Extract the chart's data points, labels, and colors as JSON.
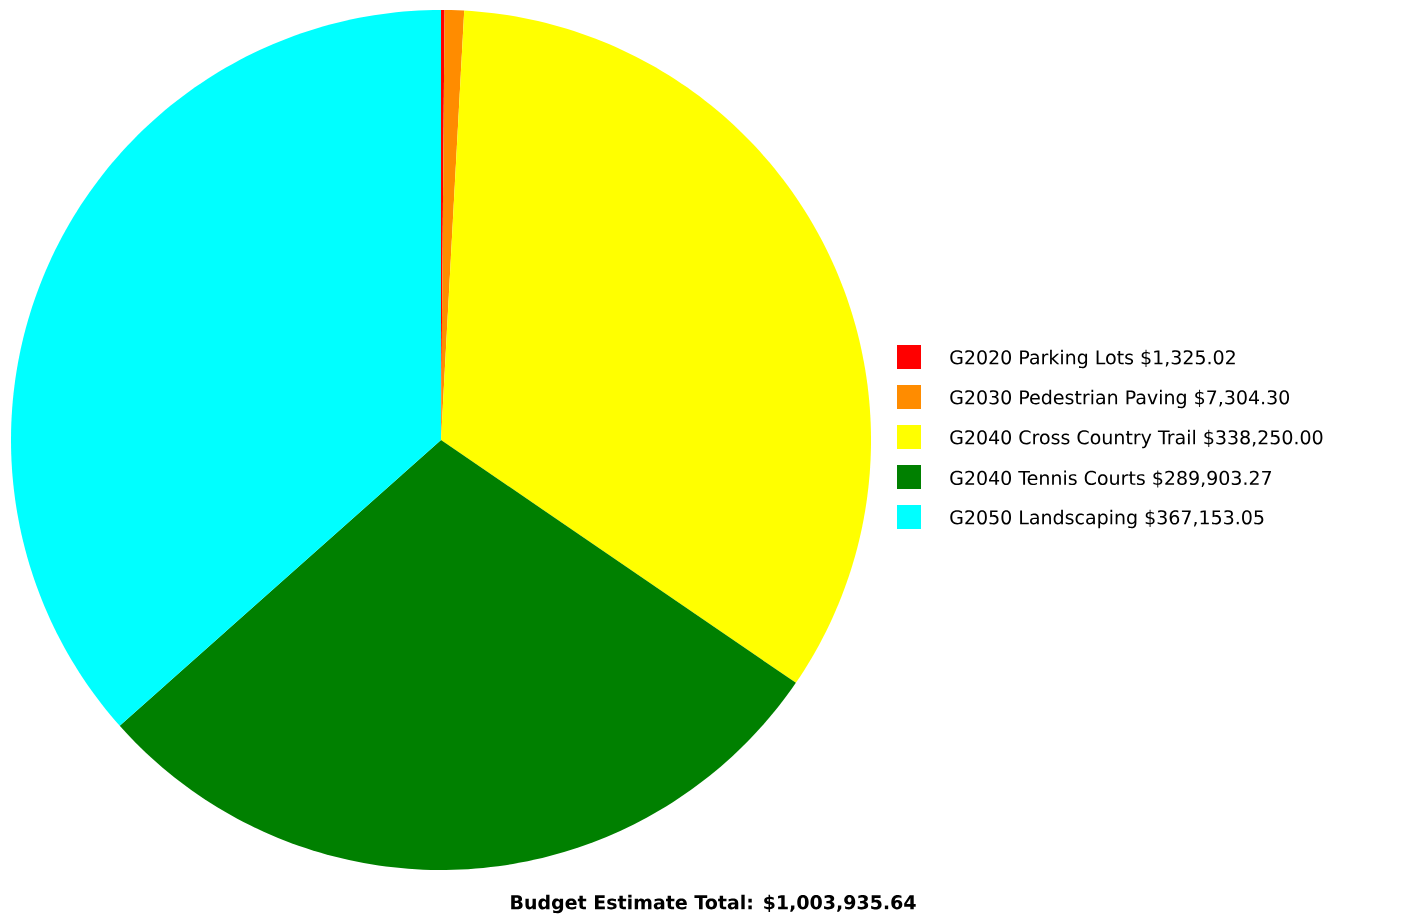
{
  "chart_data": {
    "type": "pie",
    "title": "Budget Estimate Total: $1,003,935.64",
    "categories": [
      "G2020 Parking Lots $1,325.02",
      "G2030 Pedestrian Paving $7,304.30",
      "G2040 Cross Country Trail $338,250.00",
      "G2040 Tennis Courts $289,903.27",
      "G2050 Landscaping $367,153.05"
    ],
    "values": [
      1325.02,
      7304.3,
      338250.0,
      289903.27,
      367153.05
    ],
    "colors": [
      "#ff0000",
      "#ff8c00",
      "#ffff00",
      "#008000",
      "#00ffff"
    ],
    "legend": "right"
  }
}
